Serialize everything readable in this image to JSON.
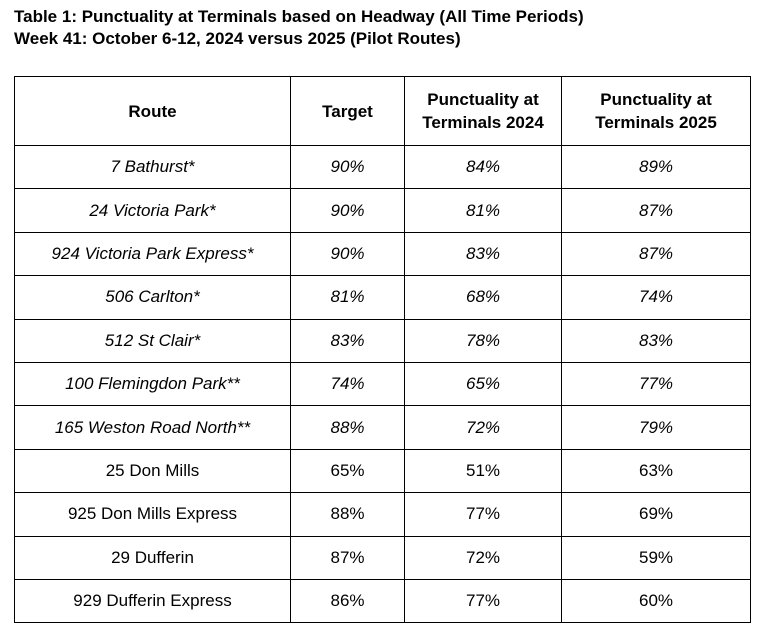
{
  "caption": {
    "line1": "Table 1: Punctuality at Terminals based on Headway (All Time Periods)",
    "line2": "Week 41: October 6-12, 2024 versus 2025 (Pilot Routes)"
  },
  "table": {
    "headers": {
      "route": "Route",
      "target": "Target",
      "p2024_line1": "Punctuality at",
      "p2024_line2": "Terminals 2024",
      "p2025_line1": "Punctuality at",
      "p2025_line2": "Terminals 2025"
    },
    "rows": [
      {
        "route": "7 Bathurst*",
        "target": "90%",
        "p2024": "84%",
        "p2025": "89%",
        "italic": true
      },
      {
        "route": "24 Victoria Park*",
        "target": "90%",
        "p2024": "81%",
        "p2025": "87%",
        "italic": true
      },
      {
        "route": "924 Victoria Park Express*",
        "target": "90%",
        "p2024": "83%",
        "p2025": "87%",
        "italic": true
      },
      {
        "route": "506 Carlton*",
        "target": "81%",
        "p2024": "68%",
        "p2025": "74%",
        "italic": true
      },
      {
        "route": "512 St Clair*",
        "target": "83%",
        "p2024": "78%",
        "p2025": "83%",
        "italic": true
      },
      {
        "route": "100 Flemingdon Park**",
        "target": "74%",
        "p2024": "65%",
        "p2025": "77%",
        "italic": true
      },
      {
        "route": "165 Weston Road North**",
        "target": "88%",
        "p2024": "72%",
        "p2025": "79%",
        "italic": true
      },
      {
        "route": "25 Don Mills",
        "target": "65%",
        "p2024": "51%",
        "p2025": "63%",
        "italic": false
      },
      {
        "route": "925 Don Mills Express",
        "target": "88%",
        "p2024": "77%",
        "p2025": "69%",
        "italic": false
      },
      {
        "route": "29 Dufferin",
        "target": "87%",
        "p2024": "72%",
        "p2025": "59%",
        "italic": false
      },
      {
        "route": "929 Dufferin Express",
        "target": "86%",
        "p2024": "77%",
        "p2025": "60%",
        "italic": false
      }
    ]
  }
}
